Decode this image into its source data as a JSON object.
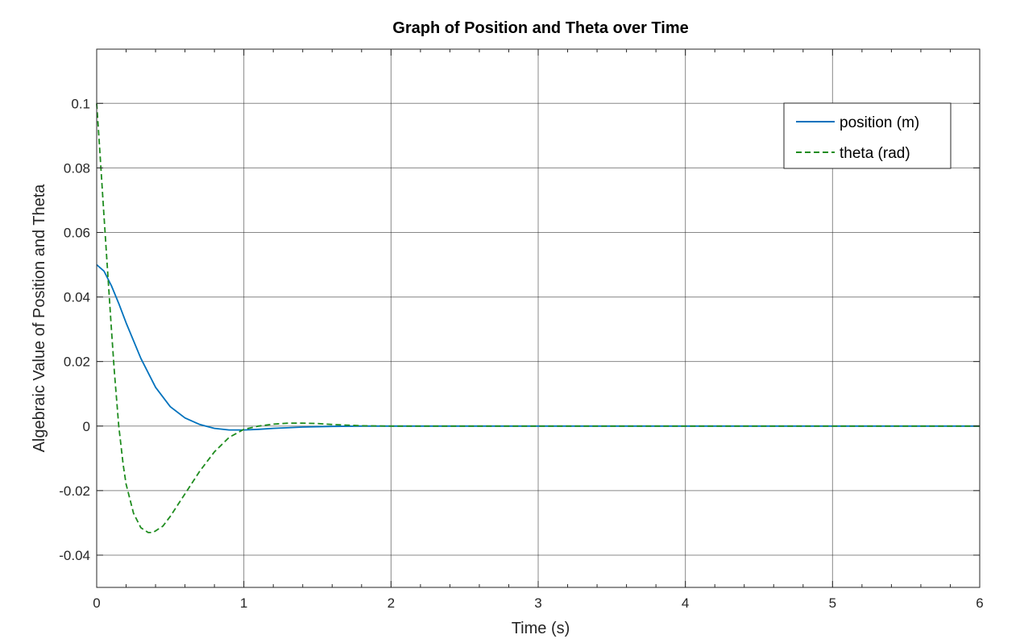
{
  "chart_data": {
    "type": "line",
    "title": "Graph of Position and Theta over Time",
    "xlabel": "Time (s)",
    "ylabel": "Algebraic Value of Position and Theta",
    "xlim": [
      0,
      6
    ],
    "ylim": [
      -0.05,
      0.1168
    ],
    "x_ticks": [
      0,
      1,
      2,
      3,
      4,
      5,
      6
    ],
    "x_tick_labels": [
      "0",
      "1",
      "2",
      "3",
      "4",
      "5",
      "6"
    ],
    "y_ticks": [
      -0.04,
      -0.02,
      0,
      0.02,
      0.04,
      0.06,
      0.08,
      0.1
    ],
    "y_tick_labels": [
      "-0.04",
      "-0.02",
      "0",
      "0.02",
      "0.04",
      "0.06",
      "0.08",
      "0.1"
    ],
    "grid": true,
    "legend_position": "top-right",
    "series": [
      {
        "name": "position (m)",
        "color": "#0072bd",
        "dash": "solid",
        "x": [
          0,
          0.05,
          0.1,
          0.15,
          0.2,
          0.3,
          0.4,
          0.5,
          0.6,
          0.7,
          0.8,
          0.9,
          1.0,
          1.1,
          1.2,
          1.4,
          1.6,
          1.8,
          2.0,
          3.0,
          4.0,
          5.0,
          6.0
        ],
        "y": [
          0.05,
          0.048,
          0.0435,
          0.038,
          0.032,
          0.021,
          0.012,
          0.006,
          0.0025,
          0.0005,
          -0.0007,
          -0.0012,
          -0.0012,
          -0.001,
          -0.0007,
          -0.0003,
          -0.0001,
          0,
          0,
          0,
          0,
          0,
          0
        ]
      },
      {
        "name": "theta (rad)",
        "color": "#1e8c1e",
        "dash": "dashed",
        "x": [
          0,
          0.02,
          0.05,
          0.08,
          0.1,
          0.12,
          0.15,
          0.18,
          0.2,
          0.25,
          0.3,
          0.35,
          0.38,
          0.4,
          0.45,
          0.5,
          0.6,
          0.7,
          0.8,
          0.9,
          1.0,
          1.1,
          1.2,
          1.3,
          1.4,
          1.5,
          1.6,
          1.7,
          1.8,
          2.0,
          3.0,
          4.0,
          5.0,
          6.0
        ],
        "y": [
          0.1,
          0.086,
          0.065,
          0.044,
          0.03,
          0.017,
          0.0,
          -0.012,
          -0.018,
          -0.027,
          -0.0315,
          -0.033,
          -0.033,
          -0.0325,
          -0.031,
          -0.028,
          -0.021,
          -0.014,
          -0.008,
          -0.0035,
          -0.001,
          0.0,
          0.0006,
          0.0009,
          0.0009,
          0.0008,
          0.0005,
          0.0003,
          0.0001,
          0,
          0,
          0,
          0,
          0
        ]
      }
    ]
  }
}
